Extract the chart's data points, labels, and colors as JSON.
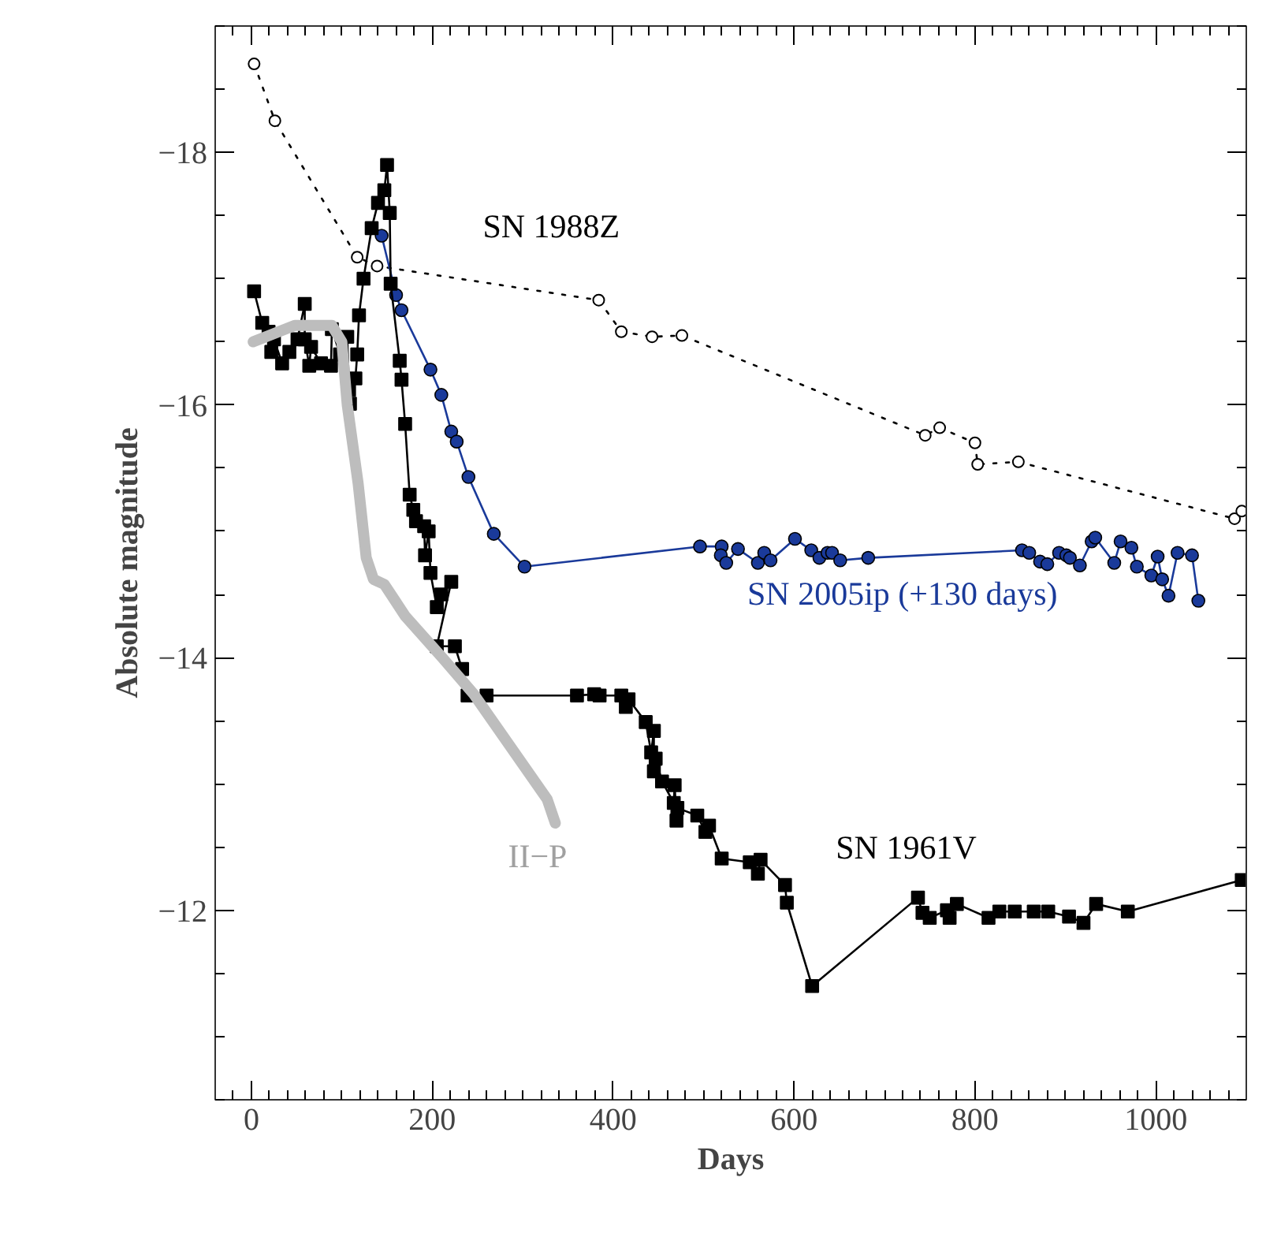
{
  "chart_data": {
    "type": "line",
    "xlabel": "Days",
    "ylabel": "Absolute magnitude",
    "xlim": [
      -40,
      1100
    ],
    "ylim": [
      -10.5,
      -19
    ],
    "xticks": [
      0,
      200,
      400,
      600,
      800,
      1000
    ],
    "yticks": [
      {
        "value": -18,
        "label": "−18"
      },
      {
        "value": -16,
        "label": "−16"
      },
      {
        "value": -14,
        "label": "−14"
      },
      {
        "value": -12,
        "label": "−12"
      }
    ],
    "grid": false,
    "series": [
      {
        "name": "SN 1988Z",
        "color": "#000000",
        "marker": "circle",
        "line_style": "dotted",
        "x": [
          3,
          26,
          117,
          139,
          384,
          409,
          443,
          476,
          745,
          761,
          800,
          803,
          848,
          1087,
          1095
        ],
        "values": [
          -18.7,
          -18.25,
          -17.17,
          -17.1,
          -16.83,
          -16.58,
          -16.54,
          -16.55,
          -15.76,
          -15.82,
          -15.7,
          -15.53,
          -15.55,
          -15.1,
          -15.16
        ]
      },
      {
        "name": "SN 2005ip (+130 days)",
        "color": "#1a3a9a",
        "marker": "circle",
        "line_style": "solid",
        "x": [
          144,
          160,
          166,
          198,
          210,
          221,
          227,
          240,
          268,
          302,
          496,
          520,
          519,
          525,
          538,
          560,
          567,
          574,
          601,
          619,
          628,
          637,
          642,
          651,
          682,
          852,
          860,
          872,
          880,
          893,
          901,
          905,
          916,
          929,
          933,
          954,
          961,
          973,
          979,
          995,
          1002,
          1007,
          1014,
          1024,
          1040,
          1047
        ],
        "values": [
          -17.34,
          -16.87,
          -16.75,
          -16.28,
          -16.08,
          -15.79,
          -15.71,
          -15.43,
          -14.98,
          -14.72,
          -14.88,
          -14.88,
          -14.81,
          -14.75,
          -14.86,
          -14.75,
          -14.83,
          -14.77,
          -14.94,
          -14.85,
          -14.79,
          -14.83,
          -14.83,
          -14.77,
          -14.79,
          -14.85,
          -14.83,
          -14.76,
          -14.74,
          -14.83,
          -14.81,
          -14.79,
          -14.73,
          -14.92,
          -14.95,
          -14.75,
          -14.92,
          -14.87,
          -14.72,
          -14.65,
          -14.8,
          -14.62,
          -14.49,
          -14.83,
          -14.81,
          -14.45
        ]
      },
      {
        "name": "SN 1961V",
        "color": "#000000",
        "marker": "square",
        "line_style": "solid",
        "x": [
          3,
          12,
          19,
          22,
          25,
          34,
          42,
          51,
          59,
          59,
          64,
          66,
          77,
          88,
          89,
          98,
          106,
          108,
          109,
          115,
          117,
          119,
          124,
          133,
          140,
          147,
          150,
          153,
          154,
          164,
          166,
          170,
          175,
          179,
          182,
          191,
          192,
          196,
          198,
          205,
          210,
          221,
          205,
          225,
          233,
          239,
          260,
          360,
          379,
          385,
          409,
          414,
          417,
          436,
          442,
          445,
          445,
          447,
          454,
          467,
          468,
          470,
          471,
          493,
          502,
          506,
          520,
          551,
          560,
          563,
          590,
          592,
          620,
          737,
          742,
          750,
          769,
          772,
          780,
          815,
          827,
          844,
          865,
          881,
          904,
          920,
          934,
          969,
          1095
        ],
        "values": [
          -16.9,
          -16.65,
          -16.58,
          -16.42,
          -16.52,
          -16.33,
          -16.42,
          -16.52,
          -16.8,
          -16.52,
          -16.31,
          -16.46,
          -16.33,
          -16.31,
          -16.6,
          -16.4,
          -16.54,
          -16.12,
          -16.01,
          -16.21,
          -16.4,
          -16.71,
          -17.0,
          -17.4,
          -17.6,
          -17.7,
          -17.9,
          -17.52,
          -16.96,
          -16.35,
          -16.2,
          -15.85,
          -15.29,
          -15.17,
          -15.08,
          -15.04,
          -14.81,
          -15.0,
          -14.67,
          -14.4,
          -14.5,
          -14.6,
          -14.09,
          -14.09,
          -13.91,
          -13.7,
          -13.7,
          -13.7,
          -13.71,
          -13.7,
          -13.7,
          -13.61,
          -13.67,
          -13.49,
          -13.25,
          -13.42,
          -13.1,
          -13.2,
          -13.02,
          -12.85,
          -12.99,
          -12.71,
          -12.81,
          -12.75,
          -12.62,
          -12.67,
          -12.41,
          -12.38,
          -12.29,
          -12.4,
          -12.2,
          -12.06,
          -11.4,
          -12.1,
          -11.98,
          -11.94,
          -12.0,
          -11.94,
          -12.05,
          -11.94,
          -11.99,
          -11.99,
          -11.99,
          -11.99,
          -11.95,
          -11.9,
          -12.05,
          -11.99,
          -12.24
        ]
      },
      {
        "name": "II−P",
        "color": "#bdbdbd",
        "marker": "none",
        "line_style": "solid",
        "x": [
          2,
          48,
          89,
          100,
          106,
          118,
          127,
          135,
          147,
          170,
          211,
          246,
          327,
          336
        ],
        "values": [
          -16.5,
          -16.63,
          -16.63,
          -16.5,
          -16.0,
          -15.38,
          -14.79,
          -14.62,
          -14.58,
          -14.33,
          -14.0,
          -13.71,
          -12.88,
          -12.69
        ]
      }
    ]
  }
}
